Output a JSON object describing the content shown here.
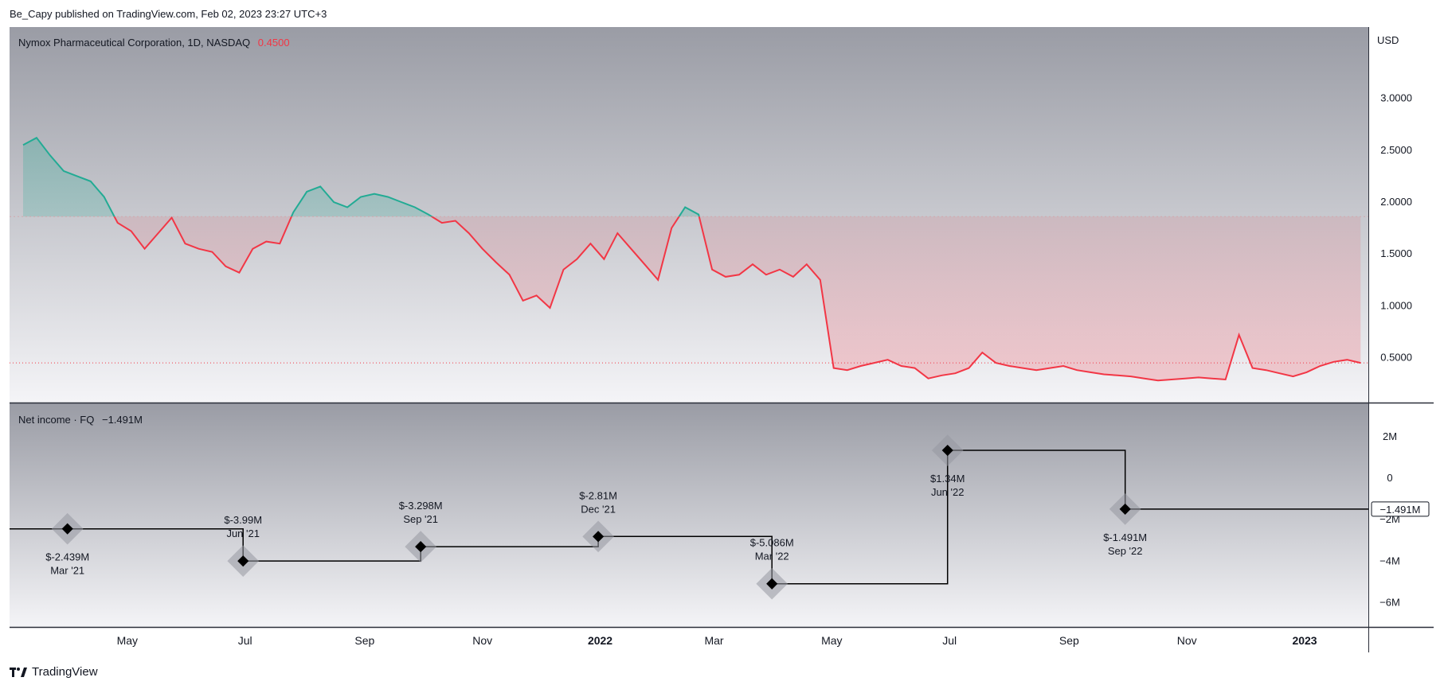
{
  "publisher": "Be_Capy published on TradingView.com, Feb 02, 2023 23:27 UTC+3",
  "footer": {
    "brand": "TradingView",
    "logo_icon": "tradingview-logo-icon"
  },
  "colors": {
    "up": "#22ab94",
    "down": "#f23645",
    "price_label": "#f23645",
    "axis_text": "#131722"
  },
  "price_pane": {
    "legend": {
      "symbol": "Nymox Pharmaceutical Corporation, 1D, NASDAQ",
      "price": "0.4500"
    },
    "currency": "USD",
    "y_ticks": [
      "3.0000",
      "2.5000",
      "2.0000",
      "1.5000",
      "1.0000",
      "0.5000"
    ]
  },
  "income_pane": {
    "legend": {
      "title": "Net income · FQ",
      "value": "−1.491M"
    },
    "y_ticks": [
      "2M",
      "0",
      "−2M",
      "−4M",
      "−6M"
    ],
    "last_value_label": "−1.491M"
  },
  "x_ticks": [
    {
      "label": "May",
      "bold": false
    },
    {
      "label": "Jul",
      "bold": false
    },
    {
      "label": "Sep",
      "bold": false
    },
    {
      "label": "Nov",
      "bold": false
    },
    {
      "label": "2022",
      "bold": true
    },
    {
      "label": "Mar",
      "bold": false
    },
    {
      "label": "May",
      "bold": false
    },
    {
      "label": "Jul",
      "bold": false
    },
    {
      "label": "Sep",
      "bold": false
    },
    {
      "label": "Nov",
      "bold": false
    },
    {
      "label": "2023",
      "bold": true
    }
  ],
  "chart_data": [
    {
      "type": "line",
      "title": "Nymox Pharmaceutical Corporation, 1D, NASDAQ",
      "ylabel": "USD",
      "ylim": [
        0.0,
        3.5
      ],
      "baseline": 1.86,
      "current_price": 0.45,
      "x": [
        "2021-03-08",
        "2021-03-15",
        "2021-03-22",
        "2021-03-29",
        "2021-04-05",
        "2021-04-12",
        "2021-04-19",
        "2021-04-26",
        "2021-05-03",
        "2021-05-10",
        "2021-05-17",
        "2021-05-24",
        "2021-05-31",
        "2021-06-07",
        "2021-06-14",
        "2021-06-21",
        "2021-06-28",
        "2021-07-05",
        "2021-07-12",
        "2021-07-19",
        "2021-07-26",
        "2021-08-02",
        "2021-08-09",
        "2021-08-16",
        "2021-08-23",
        "2021-08-30",
        "2021-09-06",
        "2021-09-13",
        "2021-09-20",
        "2021-09-27",
        "2021-10-04",
        "2021-10-11",
        "2021-10-18",
        "2021-10-25",
        "2021-11-01",
        "2021-11-08",
        "2021-11-15",
        "2021-11-22",
        "2021-11-29",
        "2021-12-06",
        "2021-12-13",
        "2021-12-20",
        "2021-12-27",
        "2022-01-03",
        "2022-01-10",
        "2022-01-17",
        "2022-01-24",
        "2022-01-31",
        "2022-02-07",
        "2022-02-14",
        "2022-02-21",
        "2022-02-28",
        "2022-03-07",
        "2022-03-14",
        "2022-03-21",
        "2022-03-28",
        "2022-04-04",
        "2022-04-11",
        "2022-04-18",
        "2022-04-25",
        "2022-05-02",
        "2022-05-09",
        "2022-05-16",
        "2022-05-23",
        "2022-05-30",
        "2022-06-06",
        "2022-06-13",
        "2022-06-20",
        "2022-06-27",
        "2022-07-04",
        "2022-07-11",
        "2022-07-18",
        "2022-07-25",
        "2022-08-01",
        "2022-08-08",
        "2022-08-15",
        "2022-08-22",
        "2022-08-29",
        "2022-09-05",
        "2022-09-12",
        "2022-09-19",
        "2022-09-26",
        "2022-10-03",
        "2022-10-10",
        "2022-10-17",
        "2022-10-24",
        "2022-10-31",
        "2022-11-07",
        "2022-11-14",
        "2022-11-21",
        "2022-11-28",
        "2022-12-05",
        "2022-12-12",
        "2022-12-19",
        "2022-12-26",
        "2023-01-02",
        "2023-01-09",
        "2023-01-16",
        "2023-01-23",
        "2023-01-30"
      ],
      "y": [
        2.55,
        2.62,
        2.45,
        2.3,
        2.25,
        2.2,
        2.05,
        1.8,
        1.72,
        1.55,
        1.7,
        1.85,
        1.6,
        1.55,
        1.52,
        1.38,
        1.32,
        1.55,
        1.62,
        1.6,
        1.9,
        2.1,
        2.15,
        2.0,
        1.95,
        2.05,
        2.08,
        2.05,
        2.0,
        1.95,
        1.88,
        1.8,
        1.82,
        1.7,
        1.55,
        1.42,
        1.3,
        1.05,
        1.1,
        0.98,
        1.35,
        1.45,
        1.6,
        1.45,
        1.7,
        1.55,
        1.4,
        1.25,
        1.75,
        1.95,
        1.88,
        1.35,
        1.28,
        1.3,
        1.4,
        1.3,
        1.35,
        1.28,
        1.4,
        1.25,
        0.4,
        0.38,
        0.42,
        0.45,
        0.48,
        0.42,
        0.4,
        0.3,
        0.33,
        0.35,
        0.4,
        0.55,
        0.45,
        0.42,
        0.4,
        0.38,
        0.4,
        0.42,
        0.38,
        0.36,
        0.34,
        0.33,
        0.32,
        0.3,
        0.28,
        0.29,
        0.3,
        0.31,
        0.3,
        0.29,
        0.72,
        0.4,
        0.38,
        0.35,
        0.32,
        0.36,
        0.42,
        0.46,
        0.48,
        0.45
      ]
    },
    {
      "type": "line",
      "title": "Net income · FQ",
      "ylim": [
        -7.0,
        3.0
      ],
      "step": true,
      "x": [
        "Mar '21",
        "Jun '21",
        "Sep '21",
        "Dec '21",
        "Mar '22",
        "Jun '22",
        "Sep '22"
      ],
      "y": [
        -2.439,
        -3.99,
        -3.298,
        -2.81,
        -5.086,
        1.34,
        -1.491
      ],
      "labels": [
        {
          "value": "$-2.439M",
          "period": "Mar '21"
        },
        {
          "value": "$-3.99M",
          "period": "Jun '21"
        },
        {
          "value": "$-3.298M",
          "period": "Sep '21"
        },
        {
          "value": "$-2.81M",
          "period": "Dec '21"
        },
        {
          "value": "$-5.086M",
          "period": "Mar '22"
        },
        {
          "value": "$1.34M",
          "period": "Jun '22"
        },
        {
          "value": "$-1.491M",
          "period": "Sep '22"
        }
      ]
    }
  ]
}
